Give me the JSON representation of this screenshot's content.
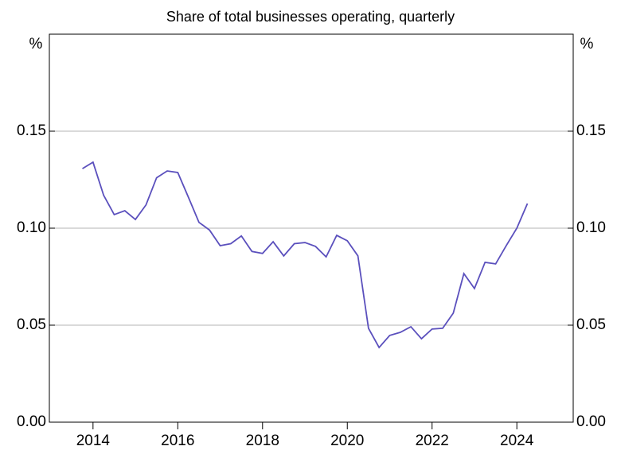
{
  "chart_data": {
    "type": "line",
    "subtitle": "Share of total businesses operating, quarterly",
    "y_label": "%",
    "x": [
      2013.75,
      2014,
      2014.25,
      2014.5,
      2014.75,
      2015,
      2015.25,
      2015.5,
      2015.75,
      2016,
      2016.25,
      2016.5,
      2016.75,
      2017,
      2017.25,
      2017.5,
      2017.75,
      2018,
      2018.25,
      2018.5,
      2018.75,
      2019,
      2019.25,
      2019.5,
      2019.75,
      2020,
      2020.25,
      2020.5,
      2020.75,
      2021,
      2021.25,
      2021.5,
      2021.75,
      2022,
      2022.25,
      2022.5,
      2022.75,
      2023,
      2023.25,
      2023.5,
      2023.75,
      2024,
      2024.25
    ],
    "series": [
      {
        "color": "#5b50bd",
        "values": [
          0.1307,
          0.134,
          0.117,
          0.107,
          0.109,
          0.1045,
          0.112,
          0.126,
          0.1295,
          0.1287,
          0.116,
          0.103,
          0.099,
          0.091,
          0.092,
          0.096,
          0.088,
          0.087,
          0.093,
          0.0857,
          0.092,
          0.0926,
          0.0906,
          0.0852,
          0.0963,
          0.0935,
          0.0857,
          0.0484,
          0.0385,
          0.0447,
          0.0463,
          0.0492,
          0.043,
          0.048,
          0.0484,
          0.0562,
          0.0766,
          0.0689,
          0.0824,
          0.0816,
          0.091,
          0.1,
          0.1127
        ]
      }
    ],
    "xlim": [
      2012.97,
      2025.33
    ],
    "xticks": [
      2014,
      2016,
      2018,
      2020,
      2022,
      2024
    ],
    "ylim": [
      0,
      0.2
    ],
    "yticks": [
      {
        "value": 0,
        "label": "0.00"
      },
      {
        "value": 0.05,
        "label": "0.05"
      },
      {
        "value": 0.1,
        "label": "0.10"
      },
      {
        "value": 0.15,
        "label": "0.15"
      }
    ],
    "grid": true
  }
}
